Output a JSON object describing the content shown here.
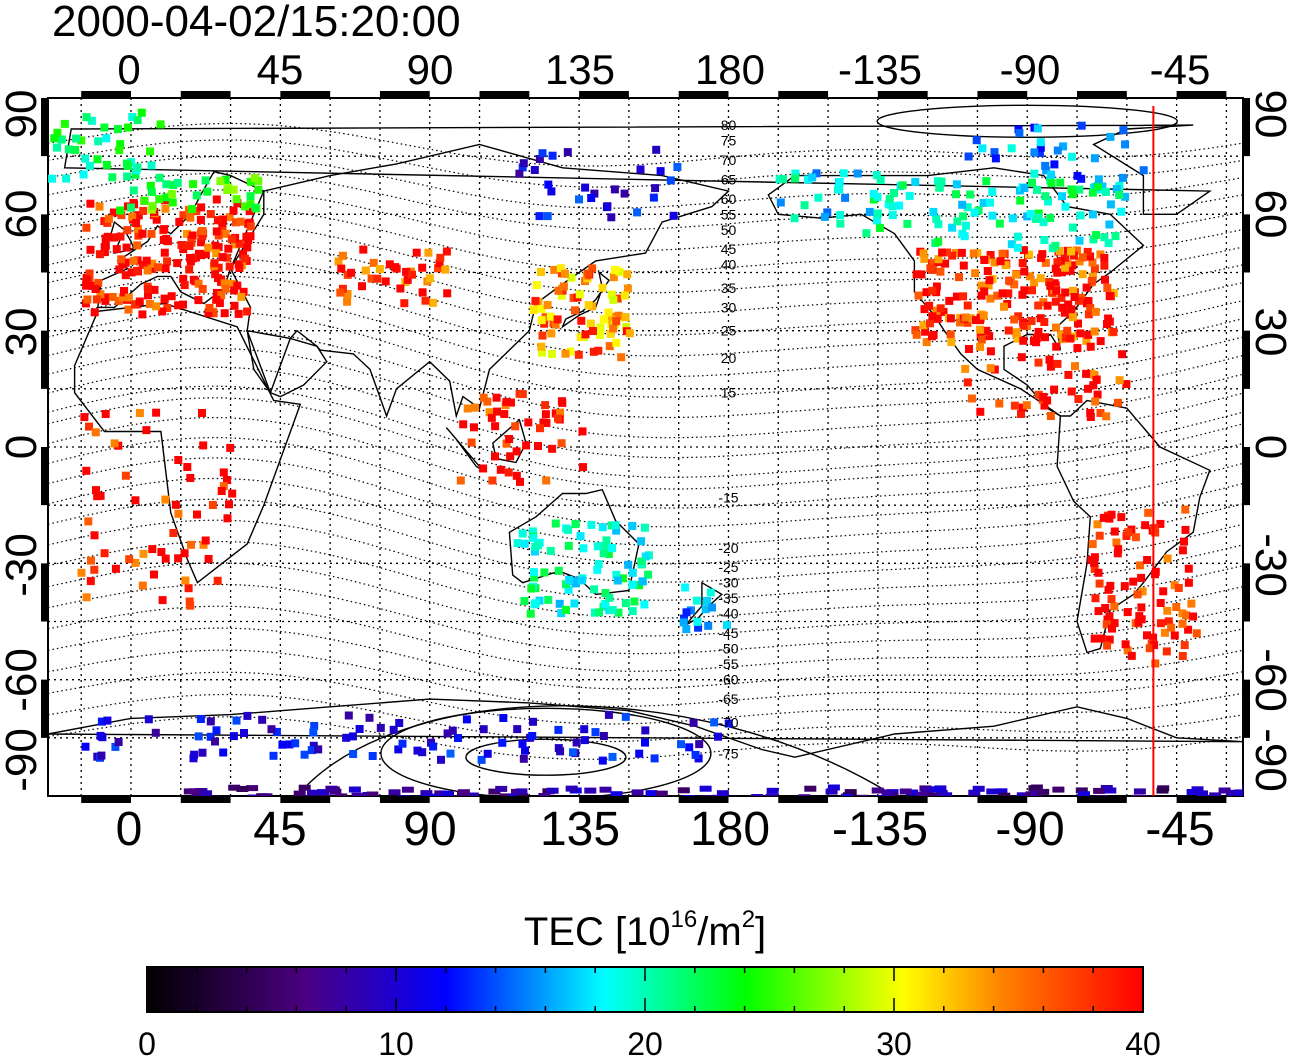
{
  "map": {
    "timestamp": "2000-04-02/15:20:00",
    "top_lon_labels": [
      "0",
      "45",
      "90",
      "135",
      "180",
      "-135",
      "-90",
      "-45"
    ],
    "bottom_lon_labels": [
      "0",
      "45",
      "90",
      "135",
      "180",
      "-135",
      "-90",
      "-45"
    ],
    "left_lat_labels": [
      "90",
      "60",
      "30",
      "0",
      "-30",
      "-60",
      "-90"
    ],
    "right_lat_labels": [
      "90",
      "60",
      "30",
      "0",
      "-30",
      "-60",
      "-90"
    ],
    "lon_values": [
      0,
      45,
      90,
      135,
      180,
      225,
      270,
      315
    ],
    "lat_values": [
      90,
      60,
      30,
      0,
      -30,
      -60,
      -90
    ],
    "lon_range_deg": [
      -25,
      335
    ],
    "lat_range_deg": [
      -90,
      90
    ],
    "magnetic_latitude_labels": [
      {
        "text": "80",
        "lat": 83
      },
      {
        "text": "75",
        "lat": 79
      },
      {
        "text": "70",
        "lat": 74
      },
      {
        "text": "65",
        "lat": 69
      },
      {
        "text": "60",
        "lat": 64
      },
      {
        "text": "55",
        "lat": 60
      },
      {
        "text": "50",
        "lat": 56
      },
      {
        "text": "45",
        "lat": 51
      },
      {
        "text": "40",
        "lat": 47
      },
      {
        "text": "35",
        "lat": 41
      },
      {
        "text": "30",
        "lat": 36
      },
      {
        "text": "25",
        "lat": 30
      },
      {
        "text": "20",
        "lat": 23
      },
      {
        "text": "15",
        "lat": 14
      },
      {
        "text": "-15",
        "lat": -13
      },
      {
        "text": "-20",
        "lat": -26
      },
      {
        "text": "-25",
        "lat": -31
      },
      {
        "text": "-30",
        "lat": -35
      },
      {
        "text": "-35",
        "lat": -39
      },
      {
        "text": "-40",
        "lat": -43
      },
      {
        "text": "-45",
        "lat": -48
      },
      {
        "text": "-50",
        "lat": -52
      },
      {
        "text": "-55",
        "lat": -56
      },
      {
        "text": "-60",
        "lat": -60
      },
      {
        "text": "-65",
        "lat": -65
      },
      {
        "text": "-70",
        "lat": -71
      },
      {
        "text": "-75",
        "lat": -79
      }
    ],
    "cursor_longitude": -52,
    "cursor_color": "#ff0000"
  },
  "colorbar": {
    "title": "TEC  [10",
    "title_sup": "16",
    "title_mid": "/m",
    "title_sup2": "2",
    "title_end": "]",
    "tick_labels": [
      "0",
      "10",
      "20",
      "30",
      "40"
    ],
    "range": [
      0,
      40
    ],
    "colormap": [
      "#000000",
      "#4b0082",
      "#0000ff",
      "#00ffff",
      "#00ff00",
      "#ffff00",
      "#ff0000"
    ]
  },
  "tec_clusters": [
    {
      "region": "europe",
      "lon": [
        -15,
        35
      ],
      "lat": [
        35,
        65
      ],
      "tec": 40,
      "density": 0.85
    },
    {
      "region": "scandinavia",
      "lon": [
        -5,
        40
      ],
      "lat": [
        62,
        72
      ],
      "tec": 27,
      "density": 0.5
    },
    {
      "region": "iceland-north-atlantic",
      "lon": [
        -25,
        10
      ],
      "lat": [
        70,
        88
      ],
      "tec": 24,
      "density": 0.35
    },
    {
      "region": "central-asia",
      "lon": [
        60,
        95
      ],
      "lat": [
        38,
        52
      ],
      "tec": 39,
      "density": 0.5
    },
    {
      "region": "japan-china",
      "lon": [
        120,
        150
      ],
      "lat": [
        24,
        48
      ],
      "tec": 36,
      "density": 0.7
    },
    {
      "region": "siberia",
      "lon": [
        115,
        165
      ],
      "lat": [
        60,
        78
      ],
      "tec": 12,
      "density": 0.2
    },
    {
      "region": "southeast-asia",
      "lon": [
        98,
        135
      ],
      "lat": [
        -8,
        15
      ],
      "tec": 40,
      "density": 0.35
    },
    {
      "region": "australia",
      "lon": [
        115,
        155
      ],
      "lat": [
        -42,
        -18
      ],
      "tec": 22,
      "density": 0.55
    },
    {
      "region": "new-zealand",
      "lon": [
        165,
        180
      ],
      "lat": [
        -48,
        -35
      ],
      "tec": 18,
      "density": 0.45
    },
    {
      "region": "north-america",
      "lon": [
        -125,
        -65
      ],
      "lat": [
        28,
        52
      ],
      "tec": 39,
      "density": 0.9
    },
    {
      "region": "canada",
      "lon": [
        -140,
        -60
      ],
      "lat": [
        52,
        70
      ],
      "tec": 22,
      "density": 0.4
    },
    {
      "region": "alaska",
      "lon": [
        -170,
        -135
      ],
      "lat": [
        58,
        72
      ],
      "tec": 20,
      "density": 0.35
    },
    {
      "region": "arctic-canada",
      "lon": [
        -110,
        -55
      ],
      "lat": [
        70,
        84
      ],
      "tec": 17,
      "density": 0.25
    },
    {
      "region": "central-america",
      "lon": [
        -110,
        -60
      ],
      "lat": [
        8,
        28
      ],
      "tec": 40,
      "density": 0.3
    },
    {
      "region": "south-america",
      "lon": [
        -72,
        -40
      ],
      "lat": [
        -55,
        -15
      ],
      "tec": 40,
      "density": 0.45
    },
    {
      "region": "africa",
      "lon": [
        -20,
        30
      ],
      "lat": [
        -40,
        10
      ],
      "tec": 40,
      "density": 0.15
    },
    {
      "region": "antarctica-coast",
      "lon": [
        -20,
        180
      ],
      "lat": [
        -80,
        -68
      ],
      "tec": 12,
      "density": 0.25
    },
    {
      "region": "south-pole-band",
      "lon": [
        15,
        335
      ],
      "lat": [
        -90,
        -87
      ],
      "tec": 8,
      "density": 0.85
    }
  ]
}
